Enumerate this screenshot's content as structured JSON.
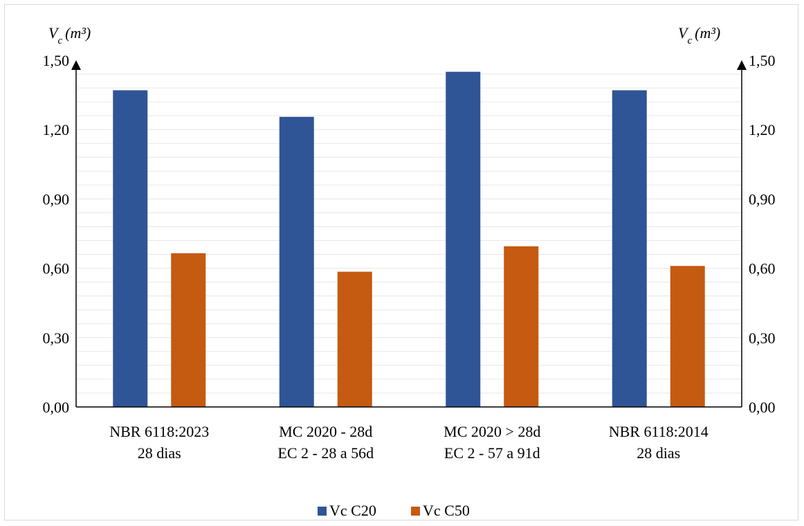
{
  "chart_data": {
    "type": "bar",
    "categories": [
      [
        "NBR 6118:2023",
        "28 dias"
      ],
      [
        "MC 2020 - 28d",
        "EC 2 - 28 a 56d"
      ],
      [
        "MC 2020 > 28d",
        "EC 2 - 57 a 91d"
      ],
      [
        "NBR 6118:2014",
        "28 dias"
      ]
    ],
    "series": [
      {
        "name": "Vc C20",
        "color": "#2F5597",
        "values": [
          1.37,
          1.255,
          1.45,
          1.37
        ]
      },
      {
        "name": "Vc C50",
        "color": "#C55A11",
        "values": [
          0.665,
          0.585,
          0.695,
          0.61
        ]
      }
    ],
    "y_axis": {
      "label_main": "V",
      "label_sub": "c",
      "label_unit": "(m³)",
      "ylim": [
        0,
        1.5
      ],
      "ticks": [
        "0,00",
        "0,30",
        "0,60",
        "0,90",
        "1,20",
        "1,50"
      ],
      "tick_values": [
        0,
        0.3,
        0.6,
        0.9,
        1.2,
        1.5
      ],
      "minor_step": 0.06
    },
    "grid": true,
    "legend_position": "bottom"
  }
}
